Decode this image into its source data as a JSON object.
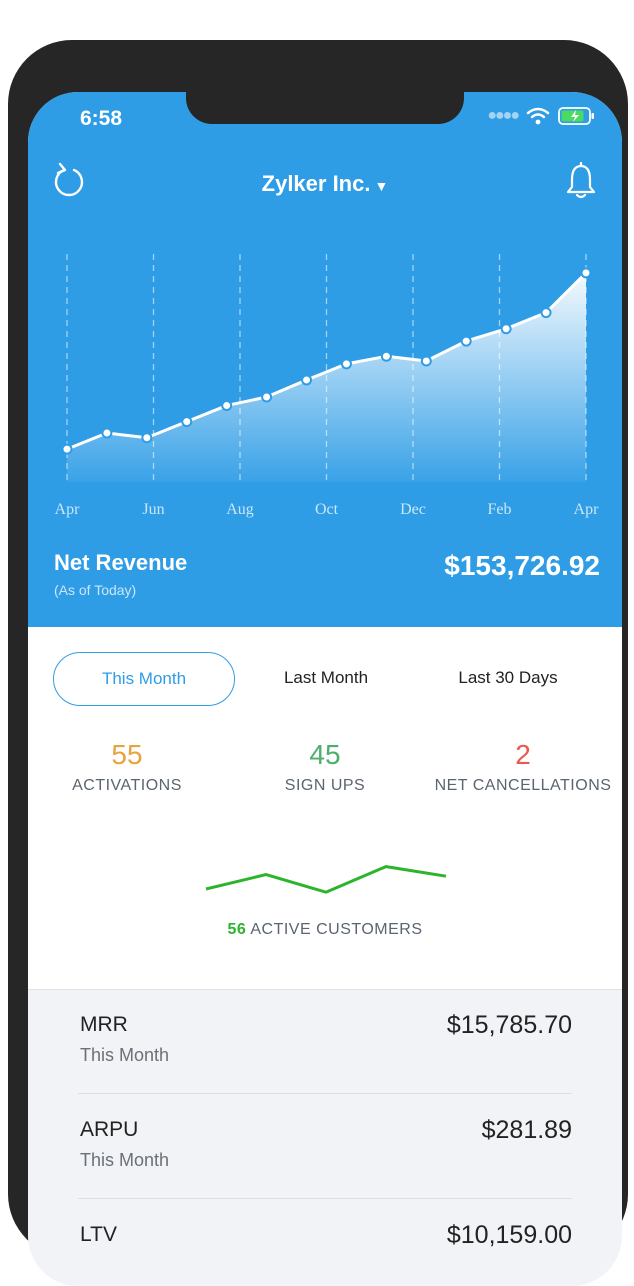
{
  "status_bar": {
    "time": "6:58"
  },
  "header": {
    "company": "Zylker Inc."
  },
  "chart_data": {
    "type": "area",
    "x_labels": [
      "Apr",
      "Jun",
      "Aug",
      "Oct",
      "Dec",
      "Feb",
      "Apr"
    ],
    "values": [
      22,
      39,
      34,
      51,
      68,
      77,
      95,
      112,
      120,
      115,
      136,
      149,
      166,
      208
    ],
    "ylim": [
      0,
      230
    ],
    "grid": "vertical-dashed"
  },
  "revenue": {
    "label": "Net Revenue",
    "sub": "(As of Today)",
    "value": "$153,726.92"
  },
  "tabs": [
    {
      "label": "This Month"
    },
    {
      "label": "Last Month"
    },
    {
      "label": "Last 30 Days"
    }
  ],
  "stats": [
    {
      "value": "55",
      "label": "ACTIVATIONS",
      "color": "#e8a33c"
    },
    {
      "value": "45",
      "label": "SIGN UPS",
      "color": "#4caf6e"
    },
    {
      "value": "2",
      "label": "NET CANCELLATIONS",
      "color": "#e85a4f"
    }
  ],
  "active_customers": {
    "count": "56",
    "label": "ACTIVE CUSTOMERS",
    "color": "#2cb52c",
    "spark": [
      20,
      38,
      16,
      48,
      36
    ]
  },
  "metrics": [
    {
      "name": "MRR",
      "period": "This Month",
      "value": "$15,785.70"
    },
    {
      "name": "ARPU",
      "period": "This Month",
      "value": "$281.89"
    },
    {
      "name": "LTV",
      "period": "",
      "value": "$10,159.00"
    }
  ],
  "colors": {
    "header_blue": "#2f9de6"
  }
}
